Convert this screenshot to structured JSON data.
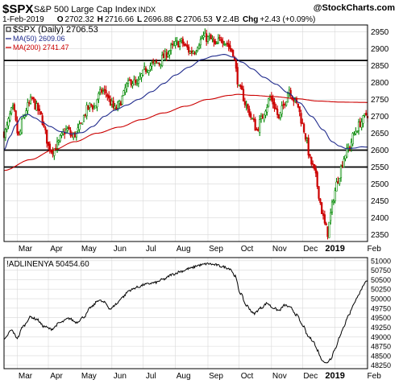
{
  "header": {
    "symbol": "$SPX",
    "name": "S&P 500 Large Cap Index",
    "exchange": "INDX",
    "watermark": "@StockCharts.com",
    "date": "1-Feb-2019",
    "open_label": "O",
    "open": "2702.32",
    "high_label": "H",
    "high": "2716.66",
    "low_label": "L",
    "low": "2696.88",
    "close_label": "C",
    "close": "2706.53",
    "volume_label": "V",
    "volume": "2.4B",
    "change_label": "Chg",
    "change": "+2.43 (+0.09%)"
  },
  "colors": {
    "frame": "#000000",
    "grid": "#d8d8d8",
    "up": "#008800",
    "down": "#cc0000",
    "ma50": "#1f2a8c",
    "ma200": "#cc0000",
    "support": "#000000",
    "breadth": "#000000"
  },
  "chart_data": [
    {
      "type": "candlestick",
      "legend": [
        {
          "label": "$SPX (Daily) 2706.53",
          "color": "#000000",
          "marker": "square"
        },
        {
          "label": "MA(50) 2609.06",
          "color": "#1f2a8c",
          "marker": "line"
        },
        {
          "label": "MA(200) 2741.47",
          "color": "#cc0000",
          "marker": "line"
        }
      ],
      "legend_position": "top-left",
      "x_ticks": [
        "Mar",
        "Apr",
        "May",
        "Jun",
        "Jul",
        "Aug",
        "Sep",
        "Oct",
        "Nov",
        "Dec",
        "2019",
        "Feb"
      ],
      "x_tick_positions": [
        1,
        22,
        44,
        65,
        86,
        108,
        130,
        151,
        173,
        194,
        216,
        237
      ],
      "x_bold_ticks": [
        "2019"
      ],
      "x_range": [
        -8,
        238
      ],
      "y_ticks": [
        2350,
        2400,
        2450,
        2500,
        2550,
        2600,
        2650,
        2700,
        2750,
        2800,
        2850,
        2900,
        2950
      ],
      "ylim": [
        2330,
        2970
      ],
      "horizontal_lines": [
        2865,
        2600,
        2550
      ],
      "grid": true,
      "price_keypoints": [
        [
          -8,
          2650
        ],
        [
          -2,
          2720
        ],
        [
          2,
          2640
        ],
        [
          5,
          2695
        ],
        [
          8,
          2730
        ],
        [
          11,
          2750
        ],
        [
          14,
          2725
        ],
        [
          17,
          2700
        ],
        [
          20,
          2650
        ],
        [
          22,
          2610
        ],
        [
          25,
          2600
        ],
        [
          28,
          2615
        ],
        [
          31,
          2640
        ],
        [
          33,
          2655
        ],
        [
          35,
          2660
        ],
        [
          38,
          2640
        ],
        [
          41,
          2650
        ],
        [
          43,
          2665
        ],
        [
          46,
          2700
        ],
        [
          48,
          2720
        ],
        [
          51,
          2735
        ],
        [
          53,
          2725
        ],
        [
          56,
          2760
        ],
        [
          58,
          2775
        ],
        [
          61,
          2770
        ],
        [
          64,
          2740
        ],
        [
          67,
          2720
        ],
        [
          70,
          2735
        ],
        [
          72,
          2755
        ],
        [
          75,
          2790
        ],
        [
          78,
          2805
        ],
        [
          80,
          2800
        ],
        [
          82,
          2790
        ],
        [
          85,
          2820
        ],
        [
          88,
          2840
        ],
        [
          91,
          2850
        ],
        [
          94,
          2855
        ],
        [
          97,
          2860
        ],
        [
          100,
          2875
        ],
        [
          103,
          2890
        ],
        [
          106,
          2905
        ],
        [
          109,
          2915
        ],
        [
          112,
          2920
        ],
        [
          115,
          2905
        ],
        [
          118,
          2890
        ],
        [
          121,
          2895
        ],
        [
          124,
          2920
        ],
        [
          127,
          2935
        ],
        [
          130,
          2930
        ],
        [
          133,
          2925
        ],
        [
          135,
          2905
        ],
        [
          137,
          2920
        ],
        [
          139,
          2930
        ],
        [
          141,
          2925
        ],
        [
          143,
          2915
        ],
        [
          145,
          2900
        ],
        [
          147,
          2890
        ],
        [
          149,
          2835
        ],
        [
          151,
          2780
        ],
        [
          153,
          2770
        ],
        [
          155,
          2740
        ],
        [
          157,
          2720
        ],
        [
          160,
          2690
        ],
        [
          163,
          2660
        ],
        [
          166,
          2690
        ],
        [
          169,
          2725
        ],
        [
          172,
          2755
        ],
        [
          174,
          2740
        ],
        [
          176,
          2720
        ],
        [
          178,
          2690
        ],
        [
          180,
          2720
        ],
        [
          182,
          2745
        ],
        [
          185,
          2780
        ],
        [
          188,
          2750
        ],
        [
          191,
          2730
        ],
        [
          193,
          2690
        ],
        [
          195,
          2660
        ],
        [
          197,
          2620
        ],
        [
          199,
          2570
        ],
        [
          201,
          2550
        ],
        [
          203,
          2520
        ],
        [
          205,
          2470
        ],
        [
          207,
          2420
        ],
        [
          209,
          2380
        ],
        [
          211,
          2355
        ],
        [
          213,
          2410
        ],
        [
          215,
          2460
        ],
        [
          217,
          2500
        ],
        [
          219,
          2530
        ],
        [
          221,
          2565
        ],
        [
          223,
          2590
        ],
        [
          226,
          2610
        ],
        [
          228,
          2640
        ],
        [
          231,
          2665
        ],
        [
          233,
          2680
        ],
        [
          235,
          2690
        ],
        [
          237,
          2706
        ]
      ],
      "ma50_keypoints": [
        [
          -8,
          2600
        ],
        [
          -4,
          2640
        ],
        [
          0,
          2675
        ],
        [
          4,
          2700
        ],
        [
          8,
          2706
        ],
        [
          13,
          2695
        ],
        [
          18,
          2682
        ],
        [
          23,
          2670
        ],
        [
          30,
          2655
        ],
        [
          38,
          2648
        ],
        [
          45,
          2652
        ],
        [
          52,
          2670
        ],
        [
          60,
          2700
        ],
        [
          67,
          2718
        ],
        [
          75,
          2733
        ],
        [
          83,
          2750
        ],
        [
          92,
          2773
        ],
        [
          100,
          2797
        ],
        [
          108,
          2822
        ],
        [
          117,
          2845
        ],
        [
          126,
          2868
        ],
        [
          134,
          2878
        ],
        [
          141,
          2883
        ],
        [
          147,
          2875
        ],
        [
          153,
          2860
        ],
        [
          160,
          2840
        ],
        [
          168,
          2815
        ],
        [
          176,
          2795
        ],
        [
          184,
          2770
        ],
        [
          192,
          2740
        ],
        [
          200,
          2700
        ],
        [
          208,
          2660
        ],
        [
          214,
          2625
        ],
        [
          219,
          2612
        ],
        [
          224,
          2604
        ],
        [
          229,
          2606
        ],
        [
          234,
          2610
        ],
        [
          237,
          2609
        ]
      ],
      "ma200_keypoints": [
        [
          -8,
          2540
        ],
        [
          10,
          2572
        ],
        [
          25,
          2600
        ],
        [
          40,
          2625
        ],
        [
          55,
          2650
        ],
        [
          70,
          2668
        ],
        [
          85,
          2690
        ],
        [
          100,
          2710
        ],
        [
          115,
          2730
        ],
        [
          130,
          2750
        ],
        [
          145,
          2762
        ],
        [
          150,
          2765
        ],
        [
          160,
          2762
        ],
        [
          175,
          2758
        ],
        [
          190,
          2752
        ],
        [
          205,
          2745
        ],
        [
          220,
          2742
        ],
        [
          237,
          2741
        ]
      ]
    },
    {
      "type": "line",
      "legend": [
        {
          "label": "!ADLINENYA 50454.60",
          "color": "#000000",
          "marker": "line"
        }
      ],
      "legend_position": "top-left",
      "x_ticks": [
        "Mar",
        "Apr",
        "May",
        "Jun",
        "Jul",
        "Aug",
        "Sep",
        "Oct",
        "Nov",
        "Dec",
        "2019",
        "Feb"
      ],
      "x_range": [
        -8,
        238
      ],
      "y_ticks": [
        48250,
        48500,
        48750,
        49000,
        49250,
        49500,
        49750,
        50000,
        50250,
        50500,
        50750,
        51000
      ],
      "ylim": [
        48160,
        51080
      ],
      "grid": true,
      "series_keypoints": [
        [
          -8,
          48920
        ],
        [
          -3,
          49170
        ],
        [
          1,
          48970
        ],
        [
          5,
          49280
        ],
        [
          10,
          49520
        ],
        [
          14,
          49460
        ],
        [
          19,
          49270
        ],
        [
          24,
          49200
        ],
        [
          30,
          49370
        ],
        [
          36,
          49480
        ],
        [
          41,
          49380
        ],
        [
          46,
          49520
        ],
        [
          51,
          49780
        ],
        [
          56,
          49960
        ],
        [
          60,
          49900
        ],
        [
          64,
          49730
        ],
        [
          68,
          49860
        ],
        [
          72,
          50040
        ],
        [
          77,
          50220
        ],
        [
          82,
          50300
        ],
        [
          88,
          50380
        ],
        [
          94,
          50420
        ],
        [
          100,
          50510
        ],
        [
          106,
          50640
        ],
        [
          112,
          50720
        ],
        [
          118,
          50800
        ],
        [
          124,
          50880
        ],
        [
          130,
          50920
        ],
        [
          135,
          50890
        ],
        [
          140,
          50840
        ],
        [
          145,
          50790
        ],
        [
          148,
          50610
        ],
        [
          152,
          50140
        ],
        [
          156,
          49820
        ],
        [
          161,
          49610
        ],
        [
          166,
          49760
        ],
        [
          170,
          49880
        ],
        [
          174,
          49760
        ],
        [
          178,
          49690
        ],
        [
          182,
          49830
        ],
        [
          186,
          49760
        ],
        [
          190,
          49570
        ],
        [
          194,
          49300
        ],
        [
          198,
          49000
        ],
        [
          201,
          48900
        ],
        [
          204,
          48650
        ],
        [
          207,
          48400
        ],
        [
          210,
          48300
        ],
        [
          213,
          48420
        ],
        [
          216,
          48680
        ],
        [
          219,
          48980
        ],
        [
          222,
          49280
        ],
        [
          225,
          49560
        ],
        [
          229,
          49880
        ],
        [
          232,
          50120
        ],
        [
          235,
          50310
        ],
        [
          237,
          50454
        ]
      ]
    }
  ]
}
